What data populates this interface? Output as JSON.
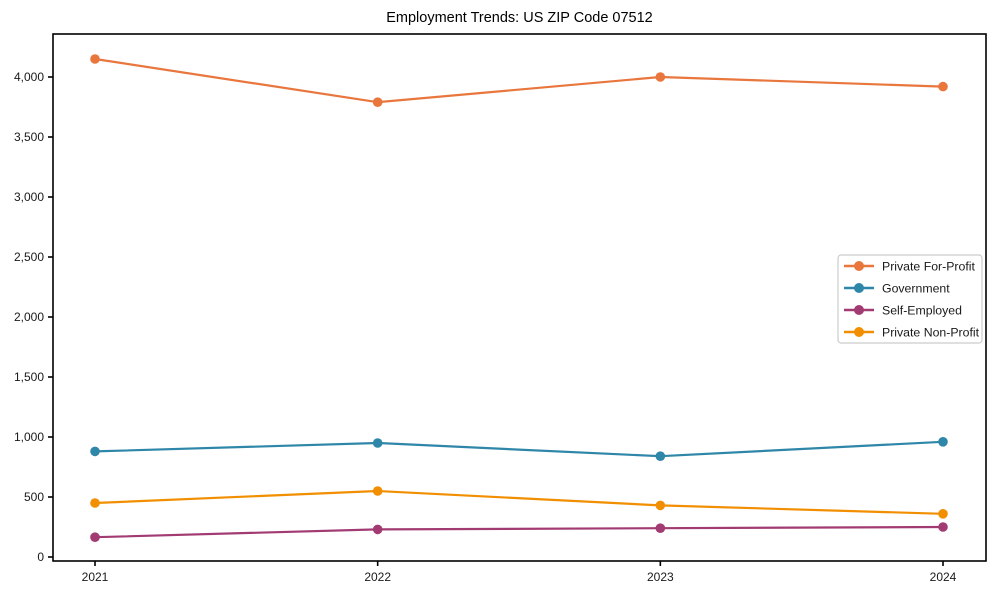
{
  "title": "Employment Trends: US ZIP Code 07512",
  "chart_data": {
    "type": "line",
    "title": "Employment Trends: US ZIP Code 07512",
    "xlabel": "",
    "ylabel": "",
    "categories": [
      "2021",
      "2022",
      "2023",
      "2024"
    ],
    "x": [
      2021,
      2022,
      2023,
      2024
    ],
    "series": [
      {
        "name": "Private For-Profit",
        "color": "#E8763D",
        "values": [
          4150,
          3790,
          4000,
          3920
        ]
      },
      {
        "name": "Government",
        "color": "#2E86A8",
        "values": [
          880,
          950,
          840,
          960
        ]
      },
      {
        "name": "Self-Employed",
        "color": "#A23B72",
        "values": [
          165,
          230,
          240,
          250
        ]
      },
      {
        "name": "Private Non-Profit",
        "color": "#F18F01",
        "values": [
          450,
          550,
          430,
          360
        ]
      }
    ],
    "ylim": [
      0,
      4000
    ],
    "yticks": [
      0,
      500,
      1000,
      1500,
      2000,
      2500,
      3000,
      3500,
      4000
    ],
    "ytick_labels": [
      "0",
      "500",
      "1,000",
      "1,500",
      "2,000",
      "2,500",
      "3,000",
      "3,500",
      "4,000"
    ],
    "grid": false,
    "legend_position": "center-right",
    "marker": "circle",
    "colors": {
      "spine": "#000000",
      "tick": "#000000",
      "legend_border": "#cccccc",
      "legend_fill": "#ffffff",
      "background": "#ffffff"
    }
  }
}
